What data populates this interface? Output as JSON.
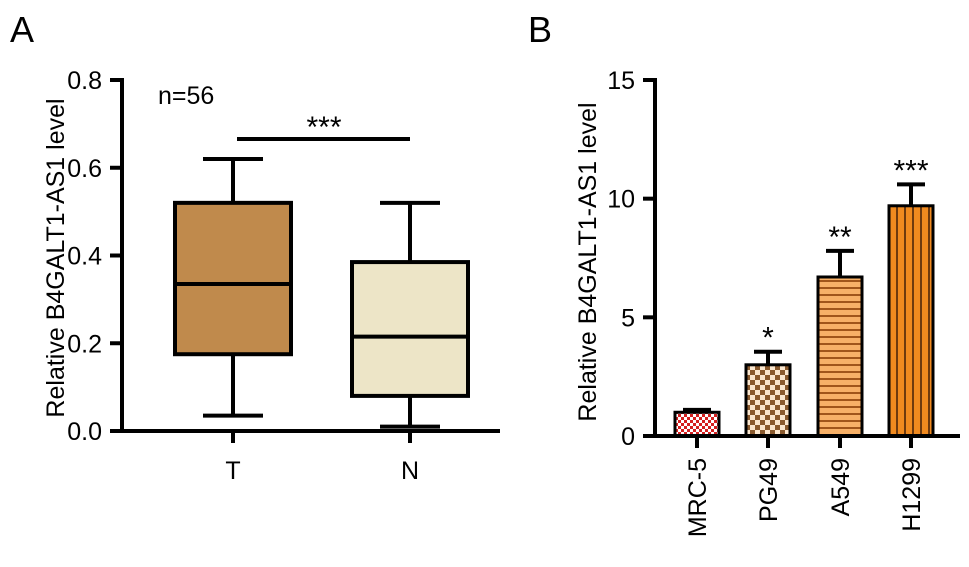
{
  "chart_data": [
    {
      "panel": "A",
      "type": "box",
      "ylabel": "Relative B4GALT1-AS1 level",
      "ylim": [
        0,
        0.8
      ],
      "yticks": [
        "0.0",
        "0.2",
        "0.4",
        "0.6",
        "0.8"
      ],
      "categories": [
        "T",
        "N"
      ],
      "series": [
        {
          "values": {
            "min": 0.035,
            "q1": 0.175,
            "median": 0.335,
            "q3": 0.52,
            "max": 0.62
          },
          "color": "#c08a4c"
        },
        {
          "values": {
            "min": 0.01,
            "q1": 0.08,
            "median": 0.215,
            "q3": 0.385,
            "max": 0.52
          },
          "color": "#ede5c7"
        }
      ],
      "annotations": {
        "n_label": "n=56",
        "significance": "***"
      },
      "grid": false,
      "legend": "none"
    },
    {
      "panel": "B",
      "type": "bar",
      "ylabel": "Relative B4GALT1-AS1 level",
      "ylim": [
        0,
        15
      ],
      "yticks": [
        "0",
        "5",
        "10",
        "15"
      ],
      "categories": [
        "MRC-5",
        "PG49",
        "A549",
        "H1299"
      ],
      "values": [
        1.0,
        3.0,
        6.7,
        9.7
      ],
      "errors": [
        0.1,
        0.55,
        1.1,
        0.9
      ],
      "significance": [
        "",
        "*",
        "**",
        "***"
      ],
      "fills": [
        "red-checker",
        "tan-checker",
        "orange-horizontal-stripes",
        "orange-vertical-stripes"
      ],
      "colors": {
        "mrc5": "#d42020",
        "pg49": "#f2b47a",
        "a549": "#f59c3a",
        "h1299": "#f08a1f"
      },
      "grid": false,
      "legend": "none"
    }
  ]
}
